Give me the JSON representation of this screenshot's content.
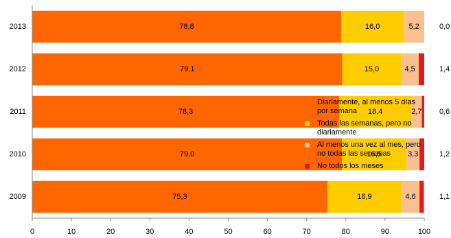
{
  "chart_data": {
    "type": "stacked-bar-horizontal",
    "categories": [
      "2013",
      "2012",
      "2011",
      "2010",
      "2009"
    ],
    "series": [
      {
        "name": "Diariamente, al menos 5 días por semana",
        "color": "#ff6600",
        "values": [
          78.8,
          79.1,
          78.3,
          79.0,
          75.3
        ],
        "value_labels": [
          "78,8",
          "79,1",
          "78,3",
          "79,0",
          "75,3"
        ]
      },
      {
        "name": "Todas las semanas, pero no diariamente",
        "color": "#ffcc00",
        "values": [
          16.0,
          15.0,
          18.4,
          16.5,
          18.9
        ],
        "value_labels": [
          "16,0",
          "15,0",
          "18,4",
          "16,5",
          "18,9"
        ]
      },
      {
        "name": "Al menos una vez al mes, pero no todas las semanas",
        "color": "#fac090",
        "values": [
          5.2,
          4.5,
          2.7,
          3.3,
          4.6
        ],
        "value_labels": [
          "5,2",
          "4,5",
          "2,7",
          "3,3",
          "4,6"
        ]
      },
      {
        "name": "No todos los meses",
        "color": "#e31a1c",
        "values": [
          0.0,
          1.4,
          0.6,
          1.2,
          1.1
        ],
        "value_labels": [
          "0,0",
          "1,4",
          "0,6",
          "1,2",
          "1,1"
        ]
      }
    ],
    "xlim": [
      0,
      100
    ],
    "xticks": [
      0,
      10,
      20,
      30,
      40,
      50,
      60,
      70,
      80,
      90,
      100
    ],
    "legend": "right"
  }
}
